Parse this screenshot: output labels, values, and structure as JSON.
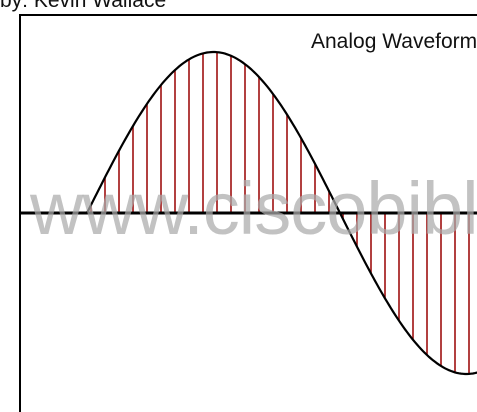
{
  "header": {
    "caption": "by: Kevin Wallace",
    "title": "Analog Waveform"
  },
  "watermark": {
    "text": "www.ciscobible"
  },
  "colors": {
    "line": "#000000",
    "sample": "#9f1010",
    "watermark": "#aaaaaa"
  }
}
